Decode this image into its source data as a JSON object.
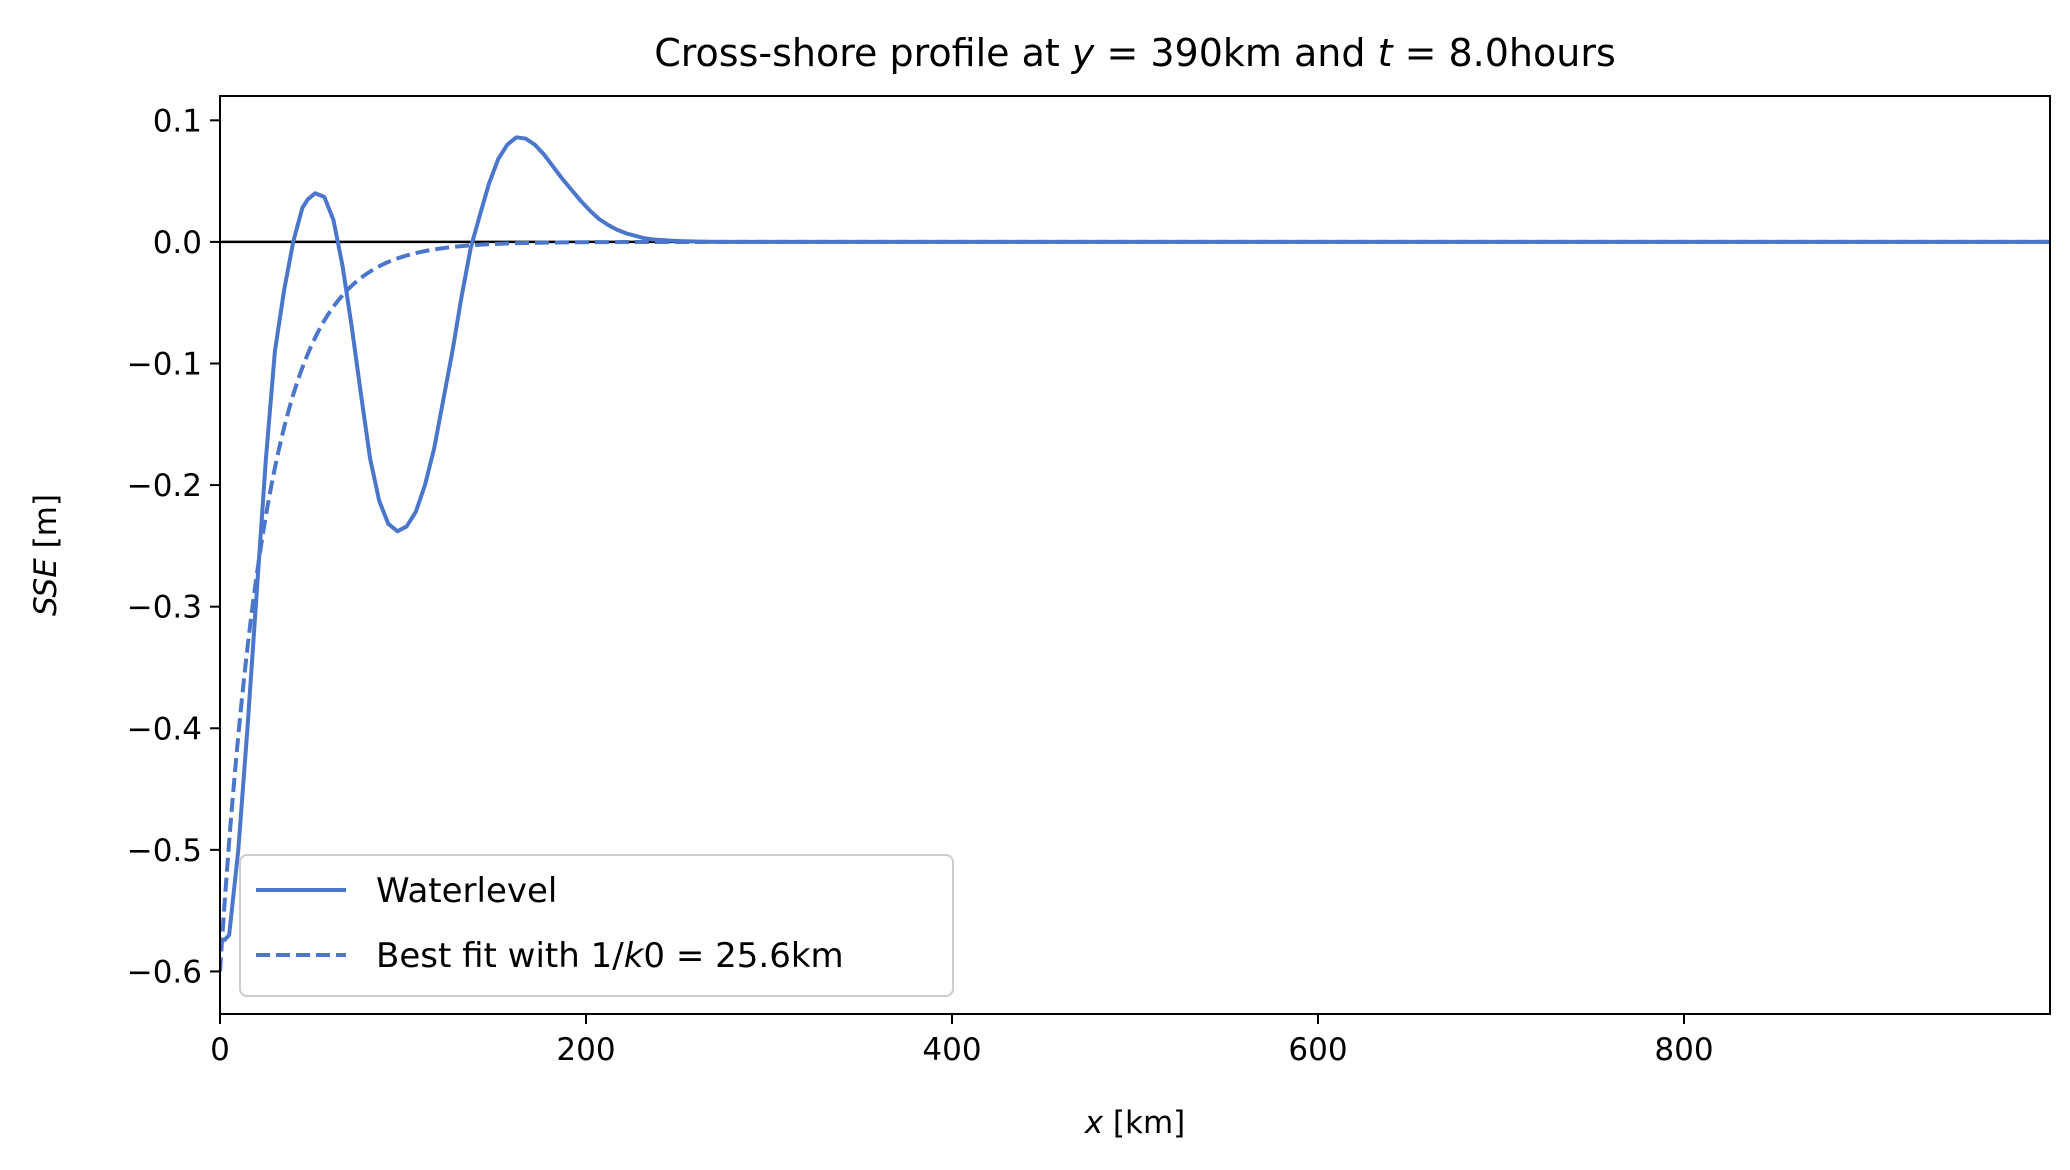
{
  "chart_data": {
    "type": "line",
    "title": {
      "prefix": "Cross-shore profile at ",
      "var1": "y",
      "eq1": " = 390km and ",
      "var2": "t",
      "eq2": " = 8.0hours"
    },
    "xlabel": {
      "var": "x",
      "unit": " [km]"
    },
    "ylabel": {
      "var": "SSE",
      "unit": " [m]"
    },
    "xlim": [
      0,
      1000
    ],
    "ylim": [
      -0.635,
      0.12
    ],
    "xticks": [
      0,
      200,
      400,
      600,
      800
    ],
    "xtick_labels": [
      "0",
      "200",
      "400",
      "600",
      "800"
    ],
    "yticks": [
      0.1,
      0.0,
      -0.1,
      -0.2,
      -0.3,
      -0.4,
      -0.5,
      -0.6
    ],
    "ytick_labels": [
      "0.1",
      "0.0",
      "−0.1",
      "−0.2",
      "−0.3",
      "−0.4",
      "−0.5",
      "−0.6"
    ],
    "grid": false,
    "zero_line": true,
    "legend_placement": "lower-left",
    "series": [
      {
        "name": "Waterlevel",
        "style": "solid",
        "color": "#4a76cc",
        "x": [
          2,
          5,
          10,
          15,
          20,
          25,
          30,
          35,
          40,
          45,
          48,
          52,
          57,
          62,
          67,
          72,
          77,
          82,
          87,
          92,
          97,
          102,
          107,
          112,
          117,
          122,
          127,
          132,
          137,
          142,
          147,
          152,
          157,
          162,
          167,
          172,
          177,
          182,
          187,
          192,
          197,
          202,
          207,
          212,
          217,
          222,
          227,
          232,
          237,
          242,
          247,
          252,
          257,
          262,
          267,
          272,
          280,
          290,
          300,
          320,
          350,
          400,
          500,
          600,
          700,
          800,
          900,
          1000
        ],
        "y": [
          -0.575,
          -0.57,
          -0.5,
          -0.4,
          -0.29,
          -0.18,
          -0.09,
          -0.04,
          0.0,
          0.028,
          0.035,
          0.04,
          0.037,
          0.018,
          -0.02,
          -0.07,
          -0.125,
          -0.178,
          -0.213,
          -0.232,
          -0.238,
          -0.234,
          -0.222,
          -0.2,
          -0.17,
          -0.13,
          -0.09,
          -0.045,
          -0.005,
          0.022,
          0.048,
          0.068,
          0.08,
          0.086,
          0.085,
          0.08,
          0.072,
          0.062,
          0.052,
          0.043,
          0.034,
          0.026,
          0.019,
          0.014,
          0.01,
          0.007,
          0.005,
          0.003,
          0.002,
          0.0015,
          0.001,
          0.0006,
          0.0004,
          0.0002,
          0.0001,
          0.0,
          0.0,
          0.0,
          0.0,
          0.0,
          0.0,
          0.0,
          0.0,
          0.0,
          0.0,
          0.0,
          0.0,
          0.0
        ]
      },
      {
        "name": "Best fit with 1/k0 = 25.6km",
        "style": "dashed",
        "color": "#4a76cc",
        "model": "-0.6*exp(-x/25.6)",
        "amplitude": -0.6,
        "decay_length": 25.6
      }
    ],
    "legend_entries": [
      {
        "label": "Waterlevel"
      },
      {
        "prefix": "Best fit with 1/",
        "var": "k",
        "suffix": "0 = 25.6km"
      }
    ]
  }
}
